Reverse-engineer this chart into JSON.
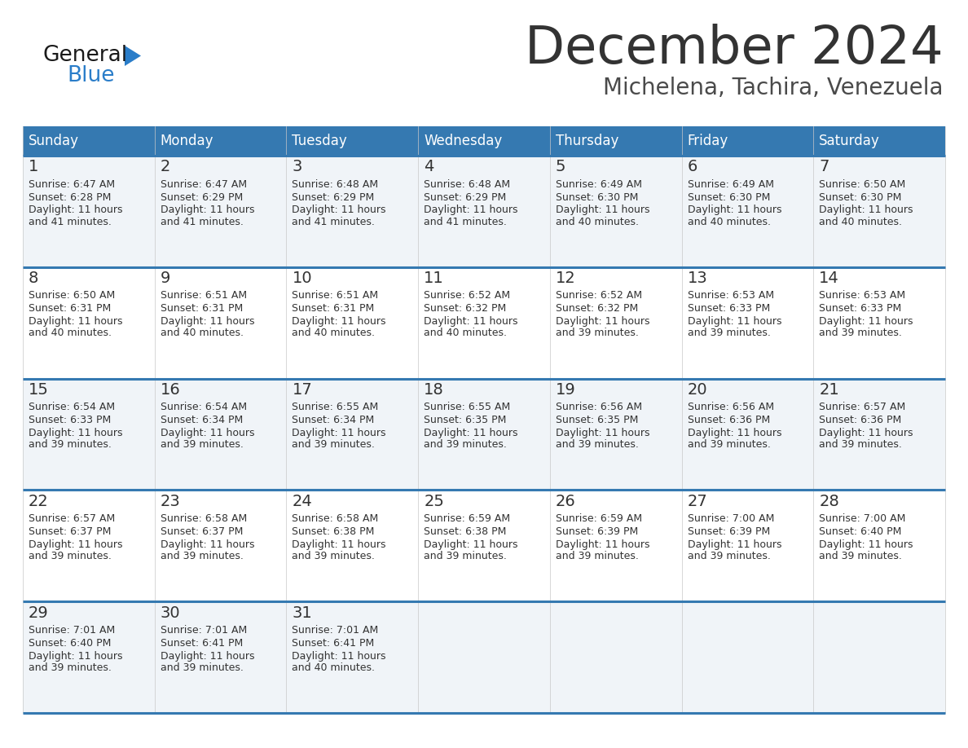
{
  "title": "December 2024",
  "subtitle": "Michelena, Tachira, Venezuela",
  "header_color": "#3579b1",
  "header_text_color": "#ffffff",
  "cell_bg_even": "#f0f4f8",
  "cell_bg_odd": "#ffffff",
  "day_names": [
    "Sunday",
    "Monday",
    "Tuesday",
    "Wednesday",
    "Thursday",
    "Friday",
    "Saturday"
  ],
  "days": [
    {
      "day": 1,
      "col": 0,
      "row": 0,
      "sunrise": "6:47 AM",
      "sunset": "6:28 PM",
      "daylight": "11 hours and 41 minutes."
    },
    {
      "day": 2,
      "col": 1,
      "row": 0,
      "sunrise": "6:47 AM",
      "sunset": "6:29 PM",
      "daylight": "11 hours and 41 minutes."
    },
    {
      "day": 3,
      "col": 2,
      "row": 0,
      "sunrise": "6:48 AM",
      "sunset": "6:29 PM",
      "daylight": "11 hours and 41 minutes."
    },
    {
      "day": 4,
      "col": 3,
      "row": 0,
      "sunrise": "6:48 AM",
      "sunset": "6:29 PM",
      "daylight": "11 hours and 41 minutes."
    },
    {
      "day": 5,
      "col": 4,
      "row": 0,
      "sunrise": "6:49 AM",
      "sunset": "6:30 PM",
      "daylight": "11 hours and 40 minutes."
    },
    {
      "day": 6,
      "col": 5,
      "row": 0,
      "sunrise": "6:49 AM",
      "sunset": "6:30 PM",
      "daylight": "11 hours and 40 minutes."
    },
    {
      "day": 7,
      "col": 6,
      "row": 0,
      "sunrise": "6:50 AM",
      "sunset": "6:30 PM",
      "daylight": "11 hours and 40 minutes."
    },
    {
      "day": 8,
      "col": 0,
      "row": 1,
      "sunrise": "6:50 AM",
      "sunset": "6:31 PM",
      "daylight": "11 hours and 40 minutes."
    },
    {
      "day": 9,
      "col": 1,
      "row": 1,
      "sunrise": "6:51 AM",
      "sunset": "6:31 PM",
      "daylight": "11 hours and 40 minutes."
    },
    {
      "day": 10,
      "col": 2,
      "row": 1,
      "sunrise": "6:51 AM",
      "sunset": "6:31 PM",
      "daylight": "11 hours and 40 minutes."
    },
    {
      "day": 11,
      "col": 3,
      "row": 1,
      "sunrise": "6:52 AM",
      "sunset": "6:32 PM",
      "daylight": "11 hours and 40 minutes."
    },
    {
      "day": 12,
      "col": 4,
      "row": 1,
      "sunrise": "6:52 AM",
      "sunset": "6:32 PM",
      "daylight": "11 hours and 39 minutes."
    },
    {
      "day": 13,
      "col": 5,
      "row": 1,
      "sunrise": "6:53 AM",
      "sunset": "6:33 PM",
      "daylight": "11 hours and 39 minutes."
    },
    {
      "day": 14,
      "col": 6,
      "row": 1,
      "sunrise": "6:53 AM",
      "sunset": "6:33 PM",
      "daylight": "11 hours and 39 minutes."
    },
    {
      "day": 15,
      "col": 0,
      "row": 2,
      "sunrise": "6:54 AM",
      "sunset": "6:33 PM",
      "daylight": "11 hours and 39 minutes."
    },
    {
      "day": 16,
      "col": 1,
      "row": 2,
      "sunrise": "6:54 AM",
      "sunset": "6:34 PM",
      "daylight": "11 hours and 39 minutes."
    },
    {
      "day": 17,
      "col": 2,
      "row": 2,
      "sunrise": "6:55 AM",
      "sunset": "6:34 PM",
      "daylight": "11 hours and 39 minutes."
    },
    {
      "day": 18,
      "col": 3,
      "row": 2,
      "sunrise": "6:55 AM",
      "sunset": "6:35 PM",
      "daylight": "11 hours and 39 minutes."
    },
    {
      "day": 19,
      "col": 4,
      "row": 2,
      "sunrise": "6:56 AM",
      "sunset": "6:35 PM",
      "daylight": "11 hours and 39 minutes."
    },
    {
      "day": 20,
      "col": 5,
      "row": 2,
      "sunrise": "6:56 AM",
      "sunset": "6:36 PM",
      "daylight": "11 hours and 39 minutes."
    },
    {
      "day": 21,
      "col": 6,
      "row": 2,
      "sunrise": "6:57 AM",
      "sunset": "6:36 PM",
      "daylight": "11 hours and 39 minutes."
    },
    {
      "day": 22,
      "col": 0,
      "row": 3,
      "sunrise": "6:57 AM",
      "sunset": "6:37 PM",
      "daylight": "11 hours and 39 minutes."
    },
    {
      "day": 23,
      "col": 1,
      "row": 3,
      "sunrise": "6:58 AM",
      "sunset": "6:37 PM",
      "daylight": "11 hours and 39 minutes."
    },
    {
      "day": 24,
      "col": 2,
      "row": 3,
      "sunrise": "6:58 AM",
      "sunset": "6:38 PM",
      "daylight": "11 hours and 39 minutes."
    },
    {
      "day": 25,
      "col": 3,
      "row": 3,
      "sunrise": "6:59 AM",
      "sunset": "6:38 PM",
      "daylight": "11 hours and 39 minutes."
    },
    {
      "day": 26,
      "col": 4,
      "row": 3,
      "sunrise": "6:59 AM",
      "sunset": "6:39 PM",
      "daylight": "11 hours and 39 minutes."
    },
    {
      "day": 27,
      "col": 5,
      "row": 3,
      "sunrise": "7:00 AM",
      "sunset": "6:39 PM",
      "daylight": "11 hours and 39 minutes."
    },
    {
      "day": 28,
      "col": 6,
      "row": 3,
      "sunrise": "7:00 AM",
      "sunset": "6:40 PM",
      "daylight": "11 hours and 39 minutes."
    },
    {
      "day": 29,
      "col": 0,
      "row": 4,
      "sunrise": "7:01 AM",
      "sunset": "6:40 PM",
      "daylight": "11 hours and 39 minutes."
    },
    {
      "day": 30,
      "col": 1,
      "row": 4,
      "sunrise": "7:01 AM",
      "sunset": "6:41 PM",
      "daylight": "11 hours and 39 minutes."
    },
    {
      "day": 31,
      "col": 2,
      "row": 4,
      "sunrise": "7:01 AM",
      "sunset": "6:41 PM",
      "daylight": "11 hours and 40 minutes."
    }
  ],
  "num_rows": 5,
  "num_cols": 7,
  "line_color": "#3579b1",
  "text_color": "#333333",
  "logo_general_color": "#1a1a1a",
  "logo_blue_color": "#2a7dc9",
  "title_fontsize": 46,
  "subtitle_fontsize": 20,
  "header_fontsize": 12,
  "day_num_fontsize": 14,
  "cell_text_fontsize": 9
}
